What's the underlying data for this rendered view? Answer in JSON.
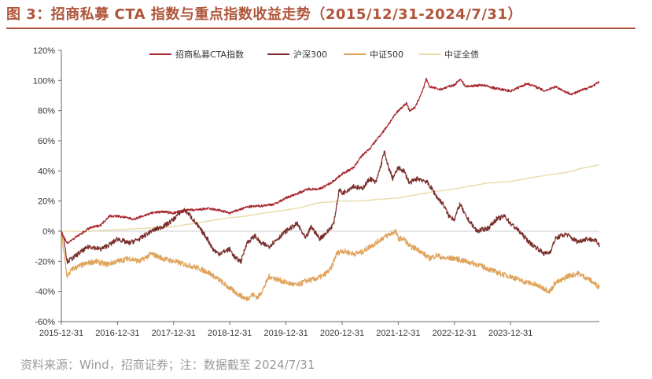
{
  "title": "图 3：招商私募 CTA 指数与重点指数收益走势（2015/12/31-2024/7/31）",
  "source": "资料来源：Wind，招商证券；注：数据截至 2024/7/31",
  "chart_data": {
    "type": "line",
    "title": "图 3：招商私募 CTA 指数与重点指数收益走势（2015/12/31-2024/7/31）",
    "xlabel": "",
    "ylabel": "",
    "x_range": [
      2015.0,
      2024.58
    ],
    "ylim": [
      -60,
      120
    ],
    "y_ticks": [
      "-60%",
      "-40%",
      "-20%",
      "0%",
      "20%",
      "40%",
      "60%",
      "80%",
      "100%",
      "120%"
    ],
    "x_ticks": [
      "2015-12-31",
      "2016-12-31",
      "2017-12-31",
      "2018-12-31",
      "2019-12-31",
      "2020-12-31",
      "2021-12-31",
      "2022-12-31",
      "2023-12-31"
    ],
    "grid": false,
    "legend_position": "top",
    "colors": {
      "title": "#b0553a",
      "cta": "#a8232a",
      "hs300": "#7a2e2a",
      "zz500": "#e0a35a",
      "bond": "#e8dcaa"
    },
    "series": [
      {
        "name": "招商私募CTA指数",
        "color": "#a8232a",
        "points": [
          [
            2015.0,
            0
          ],
          [
            2015.1,
            -8
          ],
          [
            2015.3,
            -3
          ],
          [
            2015.5,
            2
          ],
          [
            2015.7,
            4
          ],
          [
            2015.85,
            10
          ],
          [
            2016.0,
            10
          ],
          [
            2016.3,
            8
          ],
          [
            2016.6,
            12
          ],
          [
            2016.8,
            13
          ],
          [
            2017.0,
            12
          ],
          [
            2017.2,
            14
          ],
          [
            2017.4,
            14
          ],
          [
            2017.6,
            15
          ],
          [
            2017.8,
            14
          ],
          [
            2018.0,
            12
          ],
          [
            2018.3,
            16
          ],
          [
            2018.6,
            17
          ],
          [
            2018.8,
            18
          ],
          [
            2019.0,
            22
          ],
          [
            2019.2,
            25
          ],
          [
            2019.4,
            28
          ],
          [
            2019.6,
            28
          ],
          [
            2019.8,
            32
          ],
          [
            2019.9,
            35
          ],
          [
            2020.0,
            38
          ],
          [
            2020.2,
            42
          ],
          [
            2020.35,
            50
          ],
          [
            2020.5,
            55
          ],
          [
            2020.6,
            60
          ],
          [
            2020.75,
            67
          ],
          [
            2020.9,
            75
          ],
          [
            2021.0,
            80
          ],
          [
            2021.15,
            85
          ],
          [
            2021.2,
            80
          ],
          [
            2021.3,
            82
          ],
          [
            2021.45,
            95
          ],
          [
            2021.5,
            101
          ],
          [
            2021.55,
            96
          ],
          [
            2021.75,
            94
          ],
          [
            2021.9,
            96
          ],
          [
            2022.0,
            97
          ],
          [
            2022.1,
            101
          ],
          [
            2022.2,
            96
          ],
          [
            2022.5,
            97
          ],
          [
            2022.7,
            95
          ],
          [
            2022.85,
            94
          ],
          [
            2023.0,
            93
          ],
          [
            2023.3,
            98
          ],
          [
            2023.5,
            95
          ],
          [
            2023.6,
            93
          ],
          [
            2023.8,
            96
          ],
          [
            2024.0,
            92
          ],
          [
            2024.1,
            91
          ],
          [
            2024.3,
            94
          ],
          [
            2024.5,
            97
          ],
          [
            2024.58,
            99
          ]
        ]
      },
      {
        "name": "沪深300",
        "color": "#7a2e2a",
        "points": [
          [
            2015.0,
            0
          ],
          [
            2015.05,
            -5
          ],
          [
            2015.1,
            -20
          ],
          [
            2015.2,
            -18
          ],
          [
            2015.3,
            -15
          ],
          [
            2015.5,
            -10
          ],
          [
            2015.7,
            -12
          ],
          [
            2015.9,
            -8
          ],
          [
            2016.0,
            -5
          ],
          [
            2016.2,
            -8
          ],
          [
            2016.4,
            -5
          ],
          [
            2016.6,
            0
          ],
          [
            2016.8,
            3
          ],
          [
            2016.9,
            5
          ],
          [
            2017.0,
            8
          ],
          [
            2017.1,
            12
          ],
          [
            2017.2,
            14
          ],
          [
            2017.3,
            10
          ],
          [
            2017.4,
            5
          ],
          [
            2017.5,
            0
          ],
          [
            2017.6,
            -5
          ],
          [
            2017.7,
            -12
          ],
          [
            2017.8,
            -15
          ],
          [
            2018.0,
            -12
          ],
          [
            2018.1,
            -18
          ],
          [
            2018.2,
            -20
          ],
          [
            2018.3,
            -8
          ],
          [
            2018.45,
            -3
          ],
          [
            2018.55,
            -8
          ],
          [
            2018.7,
            -10
          ],
          [
            2018.85,
            -5
          ],
          [
            2019.0,
            0
          ],
          [
            2019.2,
            5
          ],
          [
            2019.35,
            -5
          ],
          [
            2019.45,
            3
          ],
          [
            2019.6,
            -5
          ],
          [
            2019.75,
            0
          ],
          [
            2019.85,
            5
          ],
          [
            2019.95,
            28
          ],
          [
            2020.0,
            25
          ],
          [
            2020.2,
            30
          ],
          [
            2020.35,
            28
          ],
          [
            2020.5,
            35
          ],
          [
            2020.6,
            32
          ],
          [
            2020.7,
            45
          ],
          [
            2020.75,
            53
          ],
          [
            2020.8,
            45
          ],
          [
            2020.9,
            35
          ],
          [
            2021.0,
            42
          ],
          [
            2021.1,
            40
          ],
          [
            2021.2,
            32
          ],
          [
            2021.35,
            35
          ],
          [
            2021.5,
            33
          ],
          [
            2021.6,
            28
          ],
          [
            2021.7,
            22
          ],
          [
            2021.8,
            18
          ],
          [
            2021.9,
            10
          ],
          [
            2022.0,
            8
          ],
          [
            2022.1,
            18
          ],
          [
            2022.2,
            10
          ],
          [
            2022.3,
            5
          ],
          [
            2022.4,
            0
          ],
          [
            2022.6,
            2
          ],
          [
            2022.75,
            8
          ],
          [
            2022.9,
            10
          ],
          [
            2023.0,
            5
          ],
          [
            2023.1,
            2
          ],
          [
            2023.2,
            -2
          ],
          [
            2023.35,
            -8
          ],
          [
            2023.5,
            -12
          ],
          [
            2023.6,
            -15
          ],
          [
            2023.7,
            -14
          ],
          [
            2023.8,
            -5
          ],
          [
            2023.9,
            -3
          ],
          [
            2024.0,
            -2
          ],
          [
            2024.1,
            -5
          ],
          [
            2024.2,
            -7
          ],
          [
            2024.35,
            -5
          ],
          [
            2024.5,
            -6
          ],
          [
            2024.58,
            -9
          ]
        ]
      },
      {
        "name": "中证500",
        "color": "#e0a35a",
        "points": [
          [
            2015.0,
            0
          ],
          [
            2015.05,
            -15
          ],
          [
            2015.1,
            -30
          ],
          [
            2015.2,
            -25
          ],
          [
            2015.4,
            -22
          ],
          [
            2015.6,
            -20
          ],
          [
            2015.8,
            -22
          ],
          [
            2016.0,
            -20
          ],
          [
            2016.2,
            -18
          ],
          [
            2016.4,
            -20
          ],
          [
            2016.6,
            -15
          ],
          [
            2016.8,
            -18
          ],
          [
            2017.0,
            -20
          ],
          [
            2017.2,
            -22
          ],
          [
            2017.4,
            -24
          ],
          [
            2017.6,
            -27
          ],
          [
            2017.8,
            -32
          ],
          [
            2018.0,
            -38
          ],
          [
            2018.2,
            -43
          ],
          [
            2018.3,
            -45
          ],
          [
            2018.4,
            -42
          ],
          [
            2018.5,
            -44
          ],
          [
            2018.6,
            -38
          ],
          [
            2018.7,
            -30
          ],
          [
            2018.85,
            -32
          ],
          [
            2019.0,
            -34
          ],
          [
            2019.2,
            -36
          ],
          [
            2019.35,
            -33
          ],
          [
            2019.5,
            -32
          ],
          [
            2019.65,
            -30
          ],
          [
            2019.8,
            -25
          ],
          [
            2019.9,
            -15
          ],
          [
            2020.0,
            -13
          ],
          [
            2020.2,
            -15
          ],
          [
            2020.35,
            -14
          ],
          [
            2020.5,
            -10
          ],
          [
            2020.6,
            -8
          ],
          [
            2020.7,
            -5
          ],
          [
            2020.8,
            -3
          ],
          [
            2020.95,
            0
          ],
          [
            2021.0,
            -5
          ],
          [
            2021.1,
            -5
          ],
          [
            2021.2,
            -10
          ],
          [
            2021.35,
            -12
          ],
          [
            2021.45,
            -15
          ],
          [
            2021.55,
            -18
          ],
          [
            2021.7,
            -16
          ],
          [
            2021.8,
            -18
          ],
          [
            2022.0,
            -18
          ],
          [
            2022.2,
            -20
          ],
          [
            2022.4,
            -22
          ],
          [
            2022.6,
            -25
          ],
          [
            2022.8,
            -28
          ],
          [
            2023.0,
            -30
          ],
          [
            2023.2,
            -33
          ],
          [
            2023.4,
            -35
          ],
          [
            2023.6,
            -38
          ],
          [
            2023.7,
            -40
          ],
          [
            2023.8,
            -34
          ],
          [
            2023.9,
            -33
          ],
          [
            2024.0,
            -30
          ],
          [
            2024.2,
            -28
          ],
          [
            2024.4,
            -32
          ],
          [
            2024.5,
            -35
          ],
          [
            2024.58,
            -37
          ]
        ]
      },
      {
        "name": "中证全债",
        "color": "#e8dcaa",
        "points": [
          [
            2015.0,
            0
          ],
          [
            2015.5,
            0
          ],
          [
            2016.0,
            1
          ],
          [
            2016.5,
            2
          ],
          [
            2017.0,
            3
          ],
          [
            2017.5,
            6
          ],
          [
            2018.0,
            9
          ],
          [
            2018.3,
            10
          ],
          [
            2018.6,
            12
          ],
          [
            2019.0,
            14
          ],
          [
            2019.3,
            16
          ],
          [
            2019.6,
            19
          ],
          [
            2020.0,
            20
          ],
          [
            2020.3,
            20
          ],
          [
            2020.6,
            21
          ],
          [
            2021.0,
            22
          ],
          [
            2021.3,
            24
          ],
          [
            2021.6,
            26
          ],
          [
            2022.0,
            28
          ],
          [
            2022.3,
            30
          ],
          [
            2022.6,
            32
          ],
          [
            2023.0,
            33
          ],
          [
            2023.3,
            35
          ],
          [
            2023.6,
            37
          ],
          [
            2024.0,
            39
          ],
          [
            2024.3,
            42
          ],
          [
            2024.58,
            44
          ]
        ]
      }
    ]
  }
}
